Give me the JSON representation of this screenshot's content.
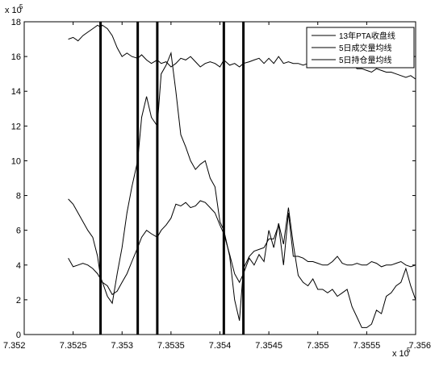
{
  "chart_data": {
    "type": "line",
    "x_exponent_label": "x 10",
    "x_exponent_power": "5",
    "y_exponent_label": "x 10",
    "y_exponent_power": "5",
    "xlim": [
      7.352,
      7.356
    ],
    "ylim": [
      0,
      18
    ],
    "x_ticks": [
      7.352,
      7.3525,
      7.353,
      7.3535,
      7.354,
      7.3545,
      7.355,
      7.3555,
      7.356
    ],
    "x_tick_labels": [
      "7.352",
      "7.3525",
      "7.353",
      "7.3535",
      "7.354",
      "7.3545",
      "7.355",
      "7.3555",
      "7.356"
    ],
    "y_ticks": [
      0,
      2,
      4,
      6,
      8,
      10,
      12,
      14,
      16,
      18
    ],
    "y_tick_labels": [
      "0",
      "2",
      "4",
      "6",
      "8",
      "10",
      "12",
      "14",
      "16",
      "18"
    ],
    "grid": false,
    "legend_position": "top-right",
    "vertical_lines": [
      7.35278,
      7.35316,
      7.35336,
      7.35404,
      7.35424
    ],
    "series": [
      {
        "name": "13年PTA收盘线",
        "color": "#000000",
        "x": [
          7.35245,
          7.3525,
          7.35255,
          7.3526,
          7.35265,
          7.3527,
          7.35275,
          7.35278,
          7.3528,
          7.35285,
          7.3529,
          7.35295,
          7.353,
          7.35305,
          7.3531,
          7.35316,
          7.3532,
          7.35325,
          7.3533,
          7.35336,
          7.3534,
          7.35345,
          7.3535,
          7.35355,
          7.3536,
          7.35365,
          7.3537,
          7.35375,
          7.3538,
          7.35385,
          7.3539,
          7.35395,
          7.354,
          7.35404,
          7.3541,
          7.35415,
          7.3542,
          7.35424,
          7.3543,
          7.35435,
          7.3544,
          7.35445,
          7.3545,
          7.35455,
          7.3546,
          7.35465,
          7.3547,
          7.35475,
          7.3548,
          7.35485,
          7.3549,
          7.35495,
          7.355,
          7.35505,
          7.3551,
          7.35515,
          7.3552,
          7.35525,
          7.3553,
          7.35535,
          7.3554,
          7.35545,
          7.3555,
          7.35555,
          7.3556,
          7.35565,
          7.3557,
          7.35575,
          7.3558,
          7.35585,
          7.3559,
          7.35595,
          7.356
        ],
        "values": [
          17.0,
          17.1,
          16.9,
          17.2,
          17.4,
          17.6,
          17.8,
          17.7,
          17.8,
          17.6,
          17.2,
          16.5,
          16.0,
          16.2,
          16.0,
          15.9,
          16.1,
          15.8,
          15.6,
          15.8,
          15.6,
          15.7,
          15.4,
          15.6,
          15.9,
          15.8,
          16.0,
          15.7,
          15.4,
          15.6,
          15.7,
          15.6,
          15.4,
          15.8,
          15.5,
          15.6,
          15.4,
          15.6,
          15.7,
          15.8,
          15.9,
          15.6,
          15.9,
          15.6,
          16.0,
          15.6,
          15.7,
          15.6,
          15.6,
          15.5,
          15.6,
          15.6,
          15.7,
          15.6,
          15.5,
          15.7,
          15.7,
          15.6,
          15.5,
          15.6,
          15.3,
          15.3,
          15.2,
          15.1,
          15.3,
          15.2,
          15.1,
          15.1,
          15.0,
          14.9,
          14.8,
          14.9,
          14.7
        ]
      },
      {
        "name": "5日成交量均线",
        "color": "#000000",
        "x": [
          7.35245,
          7.3525,
          7.35255,
          7.3526,
          7.35265,
          7.3527,
          7.35275,
          7.35278,
          7.3528,
          7.35285,
          7.3529,
          7.35295,
          7.353,
          7.35305,
          7.3531,
          7.35316,
          7.3532,
          7.35325,
          7.3533,
          7.35336,
          7.3534,
          7.35345,
          7.3535,
          7.35355,
          7.3536,
          7.35365,
          7.3537,
          7.35375,
          7.3538,
          7.35385,
          7.3539,
          7.35395,
          7.354,
          7.35404,
          7.3541,
          7.35415,
          7.3542,
          7.35424,
          7.3543,
          7.35435,
          7.3544,
          7.35445,
          7.3545,
          7.35455,
          7.3546,
          7.35465,
          7.3547,
          7.35475,
          7.3548,
          7.35485,
          7.3549,
          7.35495,
          7.355,
          7.35505,
          7.3551,
          7.35515,
          7.3552,
          7.35525,
          7.3553,
          7.35535,
          7.3554,
          7.35545,
          7.3555,
          7.35555,
          7.3556,
          7.35565,
          7.3557,
          7.35575,
          7.3558,
          7.35585,
          7.3559,
          7.35595,
          7.356
        ],
        "values": [
          7.8,
          7.5,
          7.0,
          6.5,
          6.0,
          5.6,
          4.5,
          3.3,
          3.0,
          2.8,
          2.3,
          2.5,
          3.0,
          3.5,
          4.2,
          5.0,
          5.6,
          6.0,
          5.8,
          5.6,
          6.0,
          6.3,
          6.7,
          7.5,
          7.4,
          7.6,
          7.3,
          7.4,
          7.7,
          7.6,
          7.3,
          7.0,
          6.3,
          5.8,
          4.6,
          3.5,
          3.0,
          3.5,
          4.4,
          4.0,
          4.6,
          4.2,
          6.0,
          5.0,
          6.4,
          5.2,
          7.3,
          5.2,
          3.4,
          3.0,
          2.8,
          3.2,
          2.6,
          2.6,
          2.4,
          2.6,
          2.2,
          2.4,
          2.6,
          1.6,
          1.0,
          0.4,
          0.4,
          0.6,
          1.4,
          1.2,
          2.2,
          2.4,
          2.8,
          3.0,
          3.8,
          2.8,
          2.0
        ]
      },
      {
        "name": "5日持仓量均线",
        "color": "#000000",
        "x": [
          7.35245,
          7.3525,
          7.35255,
          7.3526,
          7.35265,
          7.3527,
          7.35275,
          7.35278,
          7.3528,
          7.35285,
          7.3529,
          7.35295,
          7.353,
          7.35305,
          7.3531,
          7.35316,
          7.3532,
          7.35325,
          7.3533,
          7.35336,
          7.3534,
          7.35345,
          7.3535,
          7.35355,
          7.3536,
          7.35365,
          7.3537,
          7.35375,
          7.3538,
          7.35385,
          7.3539,
          7.35395,
          7.354,
          7.35404,
          7.3541,
          7.35415,
          7.3542,
          7.35424,
          7.3543,
          7.35435,
          7.3544,
          7.35445,
          7.3545,
          7.35455,
          7.3546,
          7.35465,
          7.3547,
          7.35475,
          7.3548,
          7.35485,
          7.3549,
          7.35495,
          7.355,
          7.35505,
          7.3551,
          7.35515,
          7.3552,
          7.35525,
          7.3553,
          7.35535,
          7.3554,
          7.35545,
          7.3555,
          7.35555,
          7.3556,
          7.35565,
          7.3557,
          7.35575,
          7.3558,
          7.35585,
          7.3559,
          7.35595,
          7.356
        ],
        "values": [
          4.4,
          3.9,
          4.0,
          4.1,
          4.0,
          3.8,
          3.5,
          3.2,
          3.0,
          2.2,
          1.8,
          3.5,
          5.0,
          7.0,
          8.5,
          10.0,
          12.5,
          13.7,
          12.5,
          12.0,
          15.0,
          15.5,
          16.2,
          14.0,
          11.5,
          10.8,
          10.0,
          9.5,
          9.8,
          10.0,
          9.0,
          8.5,
          6.5,
          6.0,
          4.5,
          2.0,
          0.8,
          3.8,
          4.5,
          4.8,
          4.9,
          5.0,
          5.5,
          5.5,
          6.3,
          4.0,
          7.0,
          4.5,
          4.5,
          4.4,
          4.2,
          4.2,
          4.1,
          4.0,
          4.0,
          4.2,
          4.5,
          4.1,
          4.0,
          4.0,
          4.1,
          4.0,
          4.0,
          4.2,
          4.1,
          3.9,
          4.0,
          4.0,
          4.1,
          4.2,
          4.0,
          3.9,
          4.0
        ]
      }
    ]
  }
}
